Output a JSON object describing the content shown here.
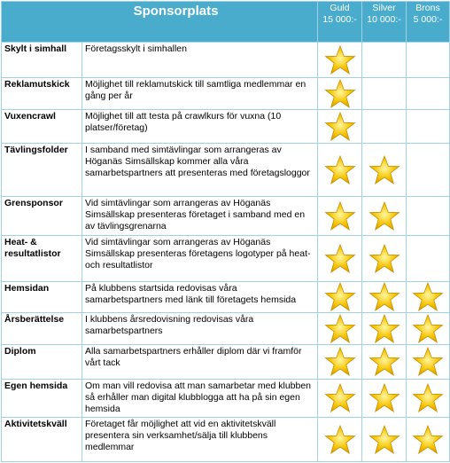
{
  "header": {
    "title": "Sponsorplats",
    "levels": [
      {
        "name": "Guld",
        "price": "15 000:-"
      },
      {
        "name": "Silver",
        "price": "10 000:-"
      },
      {
        "name": "Brons",
        "price": "5 000:-"
      }
    ]
  },
  "rows": [
    {
      "label": "Skylt i simhall",
      "description": "Företagsskylt i simhallen"
    },
    {
      "label": "Reklamutskick",
      "description": "Möjlighet till reklamutskick till samtliga medlemmar en gång per år"
    },
    {
      "label": "Vuxencrawl",
      "description": "Möjlighet till att testa på crawlkurs för vuxna (10 platser/företag)"
    },
    {
      "label": "Tävlingsfolder",
      "description": "I samband med simtävlingar som arrangeras av Höganäs Simsällskap kommer alla våra samarbetspartners att presenteras med företagsloggor"
    },
    {
      "label": "Grensponsor",
      "description": "Vid simtävlingar som arrangeras av Höganäs Simsällskap presenteras företaget i samband med en av tävlingsgrenarna"
    },
    {
      "label": "Heat- & resultatlistor",
      "description": "Vid simtävlingar som arrangeras av Höganäs Simsällskap presenteras företagens logotyper på heat- och resultatlistor"
    },
    {
      "label": "Hemsidan",
      "description": "På klubbens startsida redovisas våra samarbetspartners med länk till företagets hemsida"
    },
    {
      "label": "Årsberättelse",
      "description": "I klubbens årsredovisning redovisas våra samarbetspartners"
    },
    {
      "label": "Diplom",
      "description": "Alla samarbetspartners erhåller diplom där vi framför vårt tack"
    },
    {
      "label": "Egen hemsida",
      "description": "Om man vill redovisa att man samarbetar med klubben så erhåller man digital klubblogga att ha på sin egen hemsida"
    },
    {
      "label": "Aktivitetskväll",
      "description": "Företaget får möjlighet att vid en aktivitetskväll presentera sin verksamhet/sälja till klubbens medlemmar"
    }
  ]
}
